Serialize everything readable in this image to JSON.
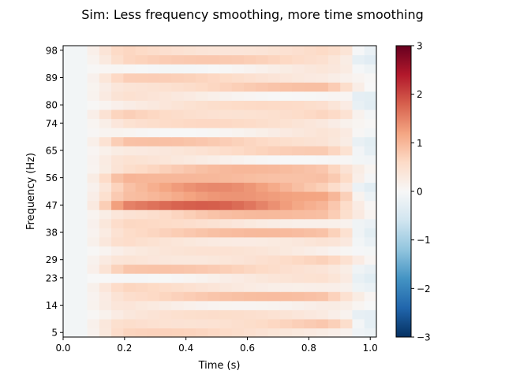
{
  "chart_data": {
    "type": "heatmap",
    "title": "Sim: Less frequency smoothing, more time smoothing",
    "xlabel": "Time (s)",
    "ylabel": "Frequency (Hz)",
    "xlim": [
      0.0,
      1.02
    ],
    "x_ticks": [
      "0.0",
      "0.2",
      "0.4",
      "0.6",
      "0.8",
      "1.0"
    ],
    "x_tick_values": [
      0.0,
      0.2,
      0.4,
      0.6,
      0.8,
      1.0
    ],
    "y_ticks": [
      "5",
      "14",
      "23",
      "29",
      "38",
      "47",
      "56",
      "65",
      "74",
      "80",
      "89",
      "98"
    ],
    "y_tick_rows": [
      0,
      3,
      6,
      8,
      11,
      14,
      17,
      20,
      23,
      25,
      28,
      31
    ],
    "n_freq_rows": 32,
    "n_time_cols": 26,
    "colorbar": {
      "vmin": -3,
      "vmax": 3,
      "ticks": [
        "3",
        "2",
        "1",
        "0",
        "−1",
        "−2",
        "−3"
      ],
      "tick_values": [
        3,
        2,
        1,
        0,
        -1,
        -2,
        -3
      ],
      "colormap": "RdBu_r"
    }
  }
}
